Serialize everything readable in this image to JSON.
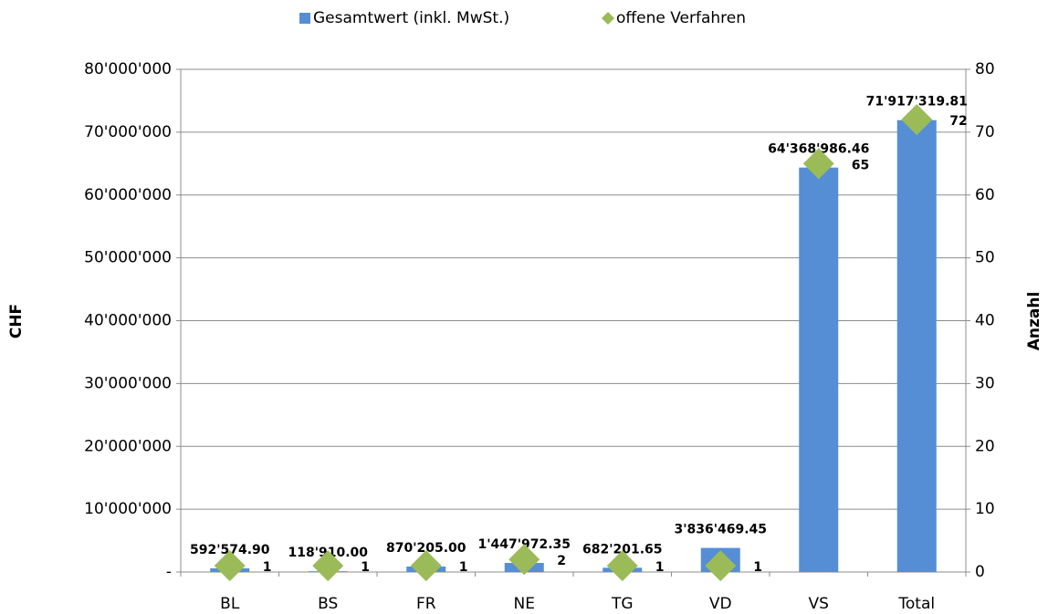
{
  "chart_data": {
    "type": "bar",
    "categories": [
      "BL",
      "BS",
      "FR",
      "NE",
      "TG",
      "VD",
      "VS",
      "Total"
    ],
    "series": [
      {
        "name": "Gesamtwert (inkl. MwSt.)",
        "type": "bar",
        "color": "#558ed5",
        "values": [
          592574.9,
          118910.0,
          870205.0,
          1447972.35,
          682201.65,
          3836469.45,
          64368986.46,
          71917319.81
        ],
        "value_labels": [
          "592'574.90",
          "118'910.00",
          "870'205.00",
          "1'447'972.35",
          "682'201.65",
          "3'836'469.45",
          "64'368'986.46",
          "71'917'319.81"
        ]
      },
      {
        "name": "offene Verfahren",
        "type": "scatter",
        "axis": "y2",
        "color": "#9bbb59",
        "values": [
          1,
          1,
          1,
          2,
          1,
          1,
          65,
          72
        ]
      }
    ],
    "ylabel": "CHF",
    "y2label": "Anzahl",
    "ylim": [
      0,
      80000000
    ],
    "yticks": [
      {
        "value": 0,
        "label": "-"
      },
      {
        "value": 10000000,
        "label": "10'000'000"
      },
      {
        "value": 20000000,
        "label": "20'000'000"
      },
      {
        "value": 30000000,
        "label": "30'000'000"
      },
      {
        "value": 40000000,
        "label": "40'000'000"
      },
      {
        "value": 50000000,
        "label": "50'000'000"
      },
      {
        "value": 60000000,
        "label": "60'000'000"
      },
      {
        "value": 70000000,
        "label": "70'000'000"
      },
      {
        "value": 80000000,
        "label": "80'000'000"
      }
    ],
    "y2lim": [
      0,
      80
    ],
    "y2ticks": [
      0,
      10,
      20,
      30,
      40,
      50,
      60,
      70,
      80
    ],
    "grid": true,
    "legend": "top"
  }
}
